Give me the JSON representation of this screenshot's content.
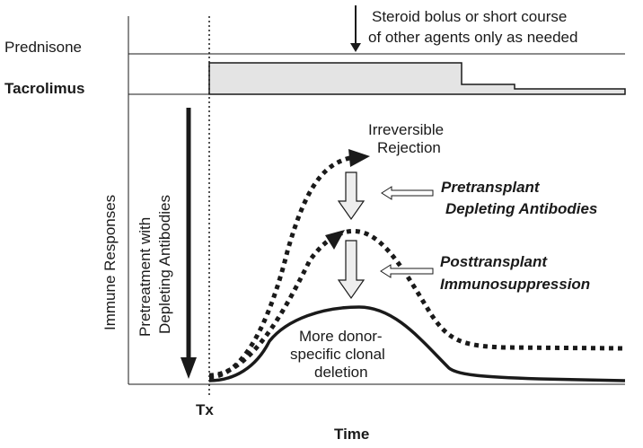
{
  "drugs": {
    "prednisone": "Prednisone",
    "tacrolimus": "Tacrolimus"
  },
  "steroid_note": {
    "line1": "Steroid bolus or short course",
    "line2": "of other agents only as needed"
  },
  "y_axis": {
    "label": "Immune Responses"
  },
  "x_axis": {
    "label": "Time",
    "marker": "Tx"
  },
  "pretreatment": {
    "line1": "Pretreatment with",
    "line2": "Depleting Antibodies"
  },
  "curves": {
    "irreversible": {
      "line1": "Irreversible",
      "line2": "Rejection"
    },
    "deletion": {
      "line1": "More donor-",
      "line2": "specific clonal",
      "line3": "deletion"
    }
  },
  "interventions": {
    "pretransplant": {
      "line1": "Pretransplant",
      "line2": "Depleting Antibodies"
    },
    "posttransplant": {
      "line1": "Posttransplant",
      "line2": "Immunosuppression"
    }
  },
  "tacrolimus_levels": [
    1.0,
    0.35,
    0.2,
    0.1
  ],
  "colors": {
    "ink": "#1a1a1a",
    "fill_light": "#e4e4e4",
    "arrow_fill": "#eeeeee"
  }
}
